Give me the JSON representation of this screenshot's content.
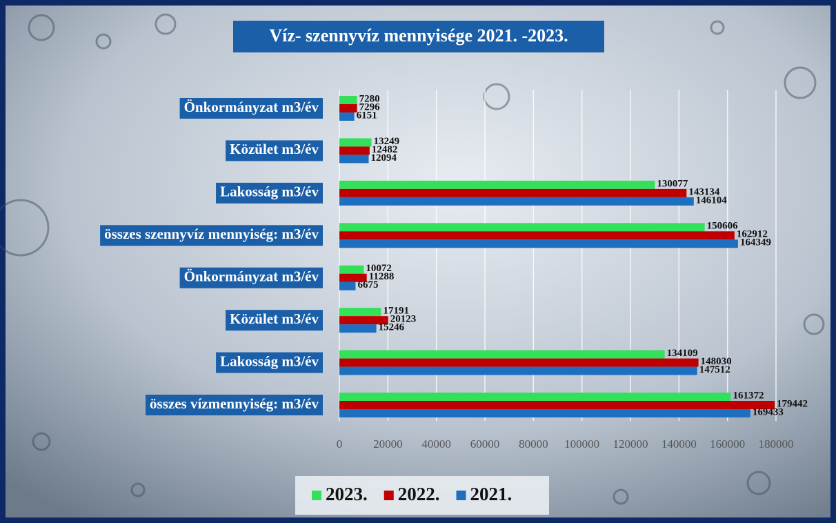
{
  "chart_data": {
    "type": "bar",
    "orientation": "horizontal",
    "title": "Víz- szennyvíz mennyisége 2021. -2023.",
    "categories": [
      "Önkormányzat m3/év",
      "Közület m3/év",
      "Lakosság m3/év",
      "összes szennyvíz mennyiség: m3/év",
      "Önkormányzat m3/év",
      "Közület m3/év",
      "Lakosság m3/év",
      "összes vízmennyiség: m3/év"
    ],
    "series": [
      {
        "name": "2023.",
        "color": "#33e05a",
        "values": [
          7280,
          13249,
          130077,
          150606,
          10072,
          17191,
          134109,
          161372
        ]
      },
      {
        "name": "2022.",
        "color": "#c00000",
        "values": [
          7296,
          12482,
          143134,
          162912,
          11288,
          20123,
          148030,
          179442
        ]
      },
      {
        "name": "2021.",
        "color": "#1f6fc0",
        "values": [
          6151,
          12094,
          146104,
          164349,
          6675,
          15246,
          147512,
          169433
        ]
      }
    ],
    "xlim": [
      0,
      180000
    ],
    "xticks": [
      0,
      20000,
      40000,
      60000,
      80000,
      100000,
      120000,
      140000,
      160000,
      180000
    ],
    "grid": true,
    "legend": "bottom"
  }
}
